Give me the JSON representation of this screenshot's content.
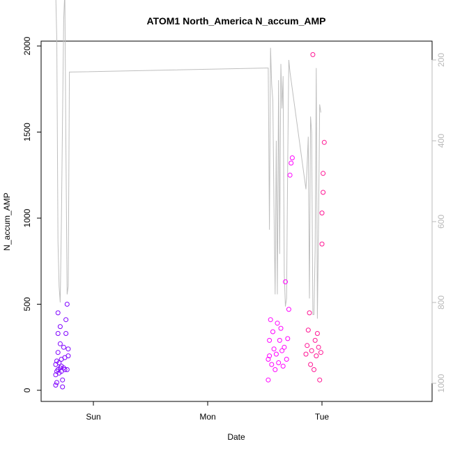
{
  "chart_data": {
    "type": "scatter",
    "title": "ATOM1 North_America N_accum_AMP",
    "xlabel": "Date",
    "ylabel": "N_accum_AMP",
    "xlim": [
      -0.31,
      2.0
    ],
    "ylim": [
      0,
      2000
    ],
    "x_ticks": [
      {
        "value": 0,
        "label": "Sun"
      },
      {
        "value": 1,
        "label": "Mon"
      },
      {
        "value": 2,
        "label": "Tue"
      }
    ],
    "y_ticks": [
      0,
      500,
      1000,
      1500,
      2000
    ],
    "y2_ticks": [
      200,
      400,
      600,
      800,
      1000
    ],
    "y2lim_reversed": [
      150,
      1020
    ],
    "grid": false,
    "line_series": {
      "color": "#bebebe",
      "axis": "secondary",
      "points": [
        [
          -0.33,
          30
        ],
        [
          -0.32,
          150
        ],
        [
          -0.31,
          650
        ],
        [
          -0.3,
          760
        ],
        [
          -0.29,
          800
        ],
        [
          -0.28,
          600
        ],
        [
          -0.27,
          350
        ],
        [
          -0.26,
          100
        ],
        [
          -0.25,
          30
        ],
        [
          -0.24,
          420
        ],
        [
          -0.23,
          780
        ],
        [
          -0.22,
          760
        ],
        [
          -0.21,
          230
        ],
        [
          1.53,
          220
        ],
        [
          1.54,
          620
        ],
        [
          1.55,
          170
        ],
        [
          1.56,
          260
        ],
        [
          1.57,
          300
        ],
        [
          1.58,
          560
        ],
        [
          1.59,
          780
        ],
        [
          1.6,
          400
        ],
        [
          1.61,
          780
        ],
        [
          1.62,
          250
        ],
        [
          1.63,
          680
        ],
        [
          1.64,
          210
        ],
        [
          1.65,
          320
        ],
        [
          1.66,
          240
        ],
        [
          1.67,
          730
        ],
        [
          1.68,
          810
        ],
        [
          1.69,
          790
        ],
        [
          1.7,
          460
        ],
        [
          1.71,
          200
        ],
        [
          1.72,
          230
        ],
        [
          1.86,
          520
        ],
        [
          1.87,
          460
        ],
        [
          1.88,
          390
        ],
        [
          1.89,
          790
        ],
        [
          1.9,
          340
        ],
        [
          1.91,
          380
        ],
        [
          1.92,
          830
        ],
        [
          1.93,
          830
        ],
        [
          1.94,
          670
        ],
        [
          1.95,
          220
        ],
        [
          1.96,
          840
        ],
        [
          1.97,
          600
        ],
        [
          1.98,
          310
        ],
        [
          1.99,
          330
        ]
      ]
    },
    "series": [
      {
        "color": "#7f00ff",
        "points": [
          [
            -0.33,
            30
          ],
          [
            -0.33,
            90
          ],
          [
            -0.33,
            150
          ],
          [
            -0.32,
            110
          ],
          [
            -0.32,
            170
          ],
          [
            -0.32,
            45
          ],
          [
            -0.31,
            120
          ],
          [
            -0.31,
            220
          ],
          [
            -0.31,
            330
          ],
          [
            -0.31,
            450
          ],
          [
            -0.3,
            100
          ],
          [
            -0.3,
            160
          ],
          [
            -0.29,
            130
          ],
          [
            -0.29,
            270
          ],
          [
            -0.29,
            370
          ],
          [
            -0.28,
            140
          ],
          [
            -0.28,
            180
          ],
          [
            -0.28,
            110
          ],
          [
            -0.27,
            20
          ],
          [
            -0.27,
            60
          ],
          [
            -0.26,
            130
          ],
          [
            -0.26,
            250
          ],
          [
            -0.25,
            120
          ],
          [
            -0.25,
            190
          ],
          [
            -0.24,
            410
          ],
          [
            -0.24,
            330
          ],
          [
            -0.23,
            500
          ],
          [
            -0.23,
            120
          ],
          [
            -0.22,
            240
          ],
          [
            -0.22,
            200
          ]
        ]
      },
      {
        "color": "#ff00ff",
        "points": [
          [
            1.53,
            60
          ],
          [
            1.53,
            180
          ],
          [
            1.54,
            200
          ],
          [
            1.54,
            290
          ],
          [
            1.55,
            410
          ],
          [
            1.56,
            150
          ],
          [
            1.57,
            340
          ],
          [
            1.58,
            240
          ],
          [
            1.59,
            120
          ],
          [
            1.6,
            210
          ],
          [
            1.61,
            390
          ],
          [
            1.62,
            160
          ],
          [
            1.63,
            290
          ],
          [
            1.64,
            360
          ],
          [
            1.65,
            230
          ],
          [
            1.66,
            140
          ],
          [
            1.67,
            250
          ],
          [
            1.68,
            630
          ],
          [
            1.69,
            180
          ],
          [
            1.7,
            300
          ],
          [
            1.71,
            470
          ],
          [
            1.72,
            1250
          ],
          [
            1.73,
            1320
          ],
          [
            1.74,
            1350
          ]
        ]
      },
      {
        "color": "#ff1493",
        "points": [
          [
            1.86,
            210
          ],
          [
            1.87,
            260
          ],
          [
            1.88,
            350
          ],
          [
            1.89,
            450
          ],
          [
            1.9,
            150
          ],
          [
            1.91,
            230
          ],
          [
            1.92,
            1950
          ],
          [
            1.93,
            120
          ],
          [
            1.94,
            290
          ],
          [
            1.95,
            200
          ],
          [
            1.96,
            330
          ],
          [
            1.97,
            250
          ],
          [
            1.98,
            60
          ],
          [
            1.99,
            220
          ],
          [
            2.0,
            850
          ],
          [
            2.0,
            1030
          ],
          [
            2.01,
            1150
          ],
          [
            2.01,
            1260
          ],
          [
            2.02,
            1440
          ]
        ]
      }
    ]
  }
}
